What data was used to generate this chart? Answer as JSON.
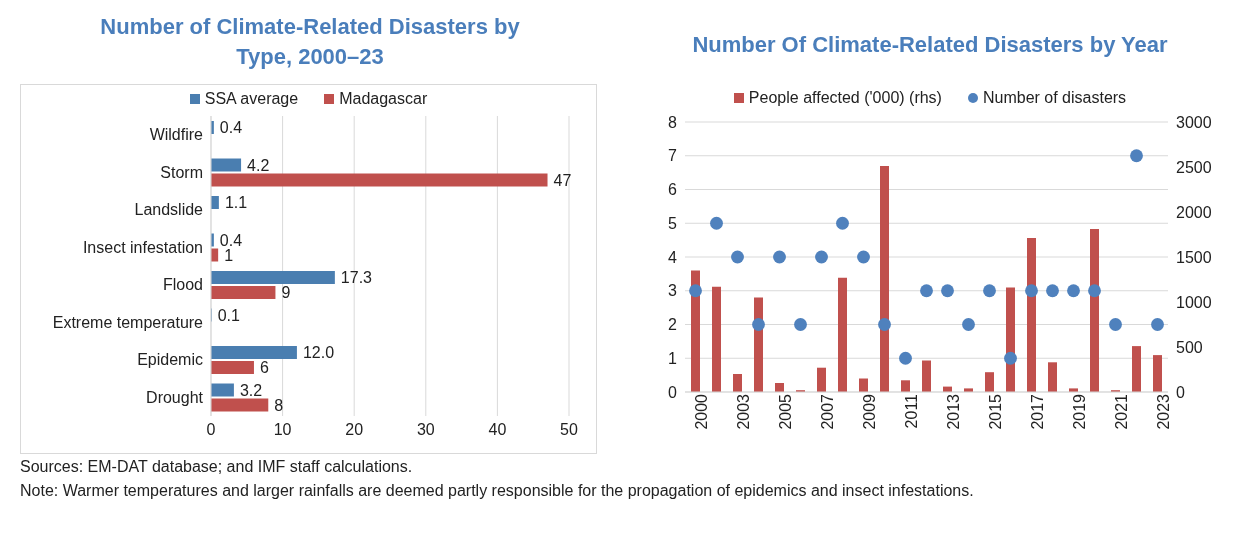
{
  "chart_data": [
    {
      "type": "bar",
      "orientation": "horizontal",
      "title": "Number of Climate-Related Disasters by Type, 2000–23",
      "categories": [
        "Wildfire",
        "Storm",
        "Landslide",
        "Insect infestation",
        "Flood",
        "Extreme temperature",
        "Epidemic",
        "Drought"
      ],
      "series": [
        {
          "name": "SSA average",
          "color": "#4a7eb0",
          "values": [
            0.4,
            4.2,
            1.1,
            0.4,
            17.3,
            0.1,
            12.0,
            3.2
          ],
          "value_labels": [
            "0.4",
            "4.2",
            "1.1",
            "0.4",
            "17.3",
            "0.1",
            "12.0",
            "3.2"
          ]
        },
        {
          "name": "Madagascar",
          "color": "#c0504d",
          "values": [
            null,
            47,
            null,
            1,
            9,
            null,
            6,
            8
          ],
          "value_labels": [
            null,
            "47",
            null,
            "1",
            "9",
            null,
            "6",
            "8"
          ]
        }
      ],
      "xlim": [
        0,
        50
      ],
      "xticks": [
        0,
        10,
        20,
        30,
        40,
        50
      ],
      "grid": "x",
      "legend": "top",
      "annotations": [
        "Sources: EM-DAT database; and IMF staff calculations.",
        "Note: Warmer temperatures and larger rainfalls are deemed partly responsible for the propagation of epidemics and insect infestations."
      ]
    },
    {
      "type": "bar",
      "title": "Number Of Climate-Related Disasters by Year",
      "categories": [
        "2000",
        null,
        "2003",
        null,
        "2005",
        null,
        "2007",
        null,
        "2009",
        null,
        "2011",
        null,
        "2013",
        null,
        "2015",
        null,
        "2017",
        null,
        "2019",
        null,
        "2021",
        null,
        "2023"
      ],
      "series": [
        {
          "name": "People affected ('000) (rhs)",
          "axis": "y2",
          "color": "#c0504d",
          "values": [
            1350,
            1170,
            200,
            1050,
            100,
            20,
            270,
            1270,
            150,
            2510,
            130,
            350,
            60,
            40,
            220,
            1160,
            1710,
            330,
            40,
            1810,
            20,
            510,
            410
          ]
        },
        {
          "name": "Number of disasters",
          "type": "scatter",
          "color": "#4f81bd",
          "values": [
            3,
            5,
            4,
            2,
            4,
            2,
            4,
            5,
            4,
            2,
            1,
            3,
            3,
            2,
            3,
            1,
            3,
            3,
            3,
            3,
            2,
            7,
            2
          ]
        }
      ],
      "ylim": [
        0,
        8
      ],
      "yticks": [
        0,
        1,
        2,
        3,
        4,
        5,
        6,
        7,
        8
      ],
      "y2lim": [
        0,
        3000
      ],
      "y2ticks": [
        0,
        500,
        1000,
        1500,
        2000,
        2500,
        3000
      ],
      "grid": "y",
      "legend": "top",
      "marker": "circle"
    }
  ]
}
